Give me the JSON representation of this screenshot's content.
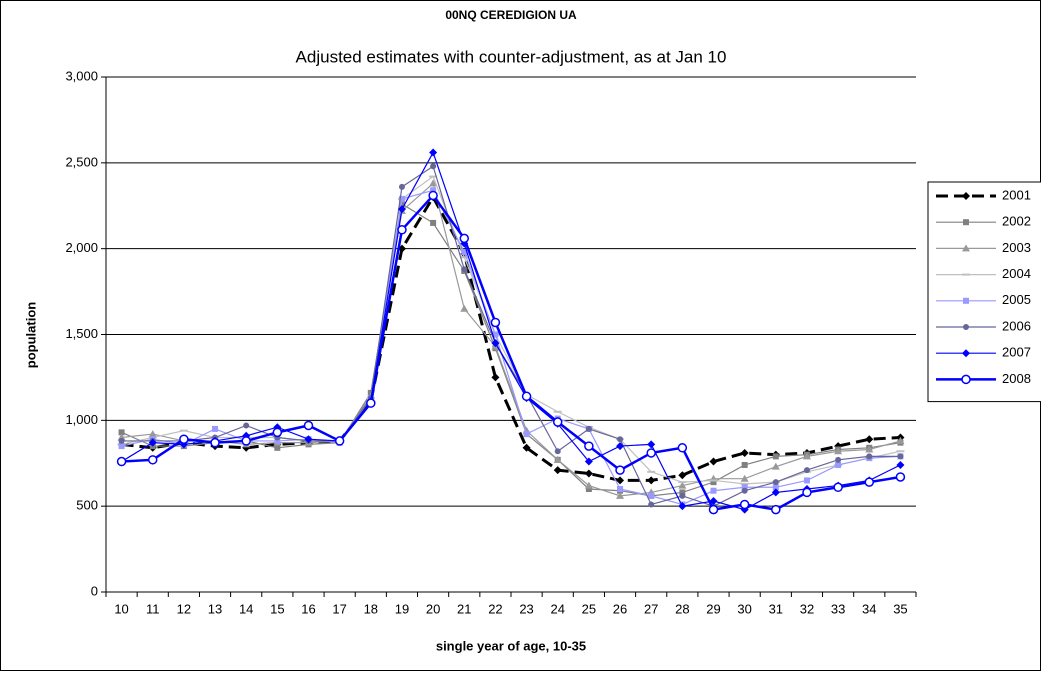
{
  "chart_data": {
    "type": "line",
    "title": "00NQ CEREDIGION UA",
    "subtitle": "Adjusted estimates with counter-adjustment, as at Jan 10",
    "x_label": "single year of age, 10-35",
    "y_label": "population",
    "categories": [
      "10",
      "11",
      "12",
      "13",
      "14",
      "15",
      "16",
      "17",
      "18",
      "19",
      "20",
      "21",
      "22",
      "23",
      "24",
      "25",
      "26",
      "27",
      "28",
      "29",
      "30",
      "31",
      "32",
      "33",
      "34",
      "35"
    ],
    "ylim": [
      0,
      3000
    ],
    "yticks": [
      0,
      500,
      {
        "value": 1000,
        "label": "1,000"
      },
      {
        "value": 1500,
        "label": "1,500"
      },
      {
        "value": 2000,
        "label": "2,000"
      },
      {
        "value": 2500,
        "label": "2,500"
      },
      {
        "value": 3000,
        "label": "3,000"
      }
    ],
    "grid": true,
    "legend": "right",
    "series": [
      {
        "name": "2001",
        "color": "#000000",
        "marker": "diamond",
        "dashed": true,
        "emphasis": true,
        "values": [
          860,
          840,
          870,
          850,
          840,
          860,
          870,
          880,
          1110,
          2000,
          2300,
          1970,
          1250,
          840,
          710,
          690,
          650,
          650,
          680,
          760,
          810,
          800,
          810,
          850,
          890,
          900
        ]
      },
      {
        "name": "2002",
        "color": "#808080",
        "marker": "square",
        "dashed": false,
        "emphasis": false,
        "values": [
          930,
          850,
          850,
          870,
          880,
          840,
          860,
          870,
          1160,
          2260,
          2150,
          1870,
          1420,
          920,
          770,
          600,
          590,
          560,
          580,
          640,
          740,
          790,
          800,
          830,
          840,
          870
        ]
      },
      {
        "name": "2003",
        "color": "#999999",
        "marker": "triangle",
        "dashed": false,
        "emphasis": false,
        "values": [
          900,
          920,
          880,
          880,
          860,
          870,
          870,
          880,
          1140,
          2220,
          2380,
          1650,
          1430,
          940,
          770,
          620,
          560,
          580,
          620,
          660,
          660,
          730,
          790,
          820,
          830,
          880
        ]
      },
      {
        "name": "2004",
        "color": "#c0c0c0",
        "marker": "dash",
        "dashed": false,
        "emphasis": false,
        "values": [
          860,
          900,
          940,
          900,
          900,
          900,
          880,
          880,
          1130,
          2290,
          2420,
          1950,
          1500,
          1150,
          1050,
          960,
          890,
          700,
          640,
          650,
          630,
          640,
          700,
          740,
          780,
          820
        ]
      },
      {
        "name": "2005",
        "color": "#9999ff",
        "marker": "square",
        "dashed": false,
        "emphasis": false,
        "values": [
          850,
          890,
          860,
          950,
          880,
          880,
          890,
          870,
          1130,
          2290,
          2340,
          1980,
          1500,
          920,
          1010,
          950,
          600,
          560,
          510,
          590,
          610,
          610,
          650,
          740,
          780,
          790
        ]
      },
      {
        "name": "2006",
        "color": "#666699",
        "marker": "circle",
        "dashed": false,
        "emphasis": false,
        "values": [
          880,
          880,
          880,
          900,
          970,
          900,
          880,
          880,
          1130,
          2360,
          2480,
          1880,
          1450,
          1150,
          820,
          950,
          890,
          510,
          560,
          500,
          590,
          640,
          710,
          770,
          790,
          790
        ]
      },
      {
        "name": "2007",
        "color": "#0000ff",
        "marker": "diamond",
        "dashed": false,
        "emphasis": false,
        "values": [
          760,
          870,
          860,
          880,
          910,
          960,
          890,
          880,
          1110,
          2230,
          2560,
          2030,
          1450,
          1130,
          980,
          760,
          850,
          860,
          500,
          530,
          480,
          580,
          600,
          620,
          650,
          740
        ]
      },
      {
        "name": "2008",
        "color": "#0000ff",
        "marker": "open-circle",
        "dashed": false,
        "emphasis": true,
        "values": [
          760,
          770,
          890,
          870,
          880,
          930,
          970,
          880,
          1100,
          2110,
          2310,
          2060,
          1570,
          1140,
          990,
          850,
          710,
          810,
          840,
          480,
          510,
          480,
          580,
          610,
          640,
          670
        ]
      }
    ]
  }
}
